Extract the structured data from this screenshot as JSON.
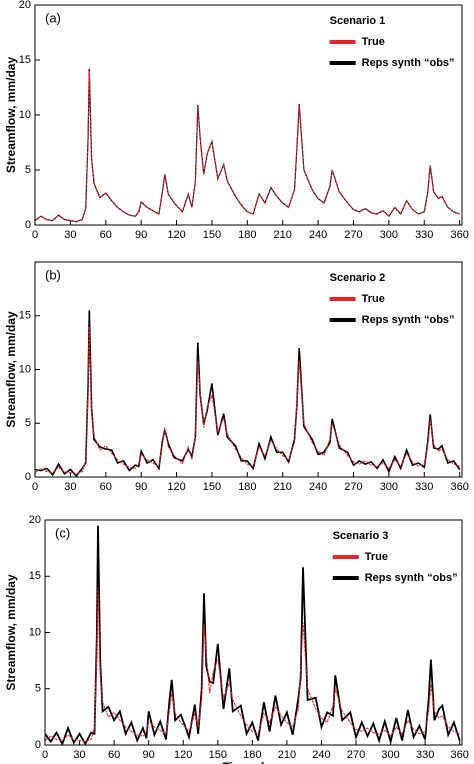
{
  "chart_data": [
    {
      "type": "line",
      "panel_label": "(a)",
      "title": "Scenario 1",
      "ylabel": "Streamflow, mm/day",
      "x": [
        0,
        5,
        10,
        15,
        20,
        25,
        30,
        35,
        40,
        43,
        45,
        46,
        48,
        50,
        55,
        60,
        65,
        70,
        75,
        80,
        85,
        88,
        90,
        95,
        100,
        105,
        108,
        110,
        113,
        118,
        125,
        130,
        133,
        136,
        138,
        140,
        143,
        146,
        150,
        155,
        160,
        163,
        170,
        175,
        180,
        185,
        190,
        195,
        200,
        205,
        210,
        215,
        220,
        222,
        224,
        228,
        235,
        240,
        245,
        250,
        252,
        258,
        265,
        270,
        275,
        280,
        285,
        290,
        295,
        300,
        305,
        310,
        315,
        320,
        325,
        330,
        333,
        335,
        338,
        342,
        345,
        350,
        355,
        360
      ],
      "series": [
        {
          "name": "Reps synth “obs”",
          "color": "#000000",
          "values": [
            0.4,
            0.8,
            0.5,
            0.4,
            0.9,
            0.5,
            0.4,
            0.3,
            0.5,
            1.5,
            8,
            14.2,
            6,
            3.8,
            2.5,
            2.9,
            2.2,
            1.6,
            1.2,
            0.9,
            0.8,
            1.2,
            2.1,
            1.6,
            1.3,
            1.0,
            3,
            4.6,
            2.8,
            2.0,
            1.2,
            2.8,
            1.6,
            4,
            10.9,
            8,
            4.6,
            6.5,
            7.6,
            4.2,
            5.5,
            4.0,
            2.6,
            1.8,
            1.2,
            1.0,
            2.8,
            2.0,
            3.4,
            2.6,
            2.0,
            1.6,
            3.2,
            7,
            11.0,
            5,
            3.2,
            2.4,
            2.0,
            3.5,
            5.0,
            3.0,
            2.0,
            1.4,
            1.2,
            1.5,
            1.1,
            1.0,
            1.3,
            0.8,
            1.6,
            1.0,
            2.2,
            1.4,
            1.0,
            1.2,
            3,
            5.4,
            3,
            2.4,
            2.6,
            1.6,
            1.2,
            1.0
          ]
        },
        {
          "name": "True",
          "color": "#e0262b",
          "values": [
            0.4,
            0.8,
            0.5,
            0.4,
            0.9,
            0.5,
            0.4,
            0.3,
            0.5,
            1.5,
            8,
            14,
            6,
            3.8,
            2.5,
            2.9,
            2.2,
            1.6,
            1.2,
            0.9,
            0.8,
            1.2,
            2.1,
            1.6,
            1.3,
            1.0,
            3,
            4.6,
            2.8,
            2.0,
            1.2,
            2.8,
            1.6,
            4,
            10.8,
            8,
            4.6,
            6.5,
            7.6,
            4.2,
            5.5,
            4.0,
            2.6,
            1.8,
            1.2,
            1.0,
            2.8,
            2.0,
            3.4,
            2.6,
            2.0,
            1.6,
            3.2,
            7,
            10.9,
            5,
            3.2,
            2.4,
            2.0,
            3.5,
            5.0,
            3.0,
            2.0,
            1.4,
            1.2,
            1.5,
            1.1,
            1.0,
            1.3,
            0.8,
            1.6,
            1.0,
            2.2,
            1.4,
            1.0,
            1.2,
            3,
            5.4,
            3,
            2.4,
            2.6,
            1.6,
            1.2,
            1.0
          ]
        }
      ],
      "xlim": [
        0,
        362
      ],
      "xticks": [
        0,
        30,
        60,
        90,
        120,
        150,
        180,
        210,
        240,
        270,
        300,
        330,
        360
      ],
      "ylim": [
        0,
        20
      ],
      "yticks": [
        0,
        5,
        10,
        15,
        20
      ],
      "legend": "upper right"
    },
    {
      "type": "line",
      "panel_label": "(b)",
      "title": "Scenario 2",
      "ylabel": "Streamflow, mm/day",
      "x": [
        0,
        5,
        10,
        15,
        20,
        25,
        30,
        35,
        40,
        43,
        45,
        46,
        48,
        50,
        55,
        60,
        65,
        70,
        75,
        80,
        85,
        88,
        90,
        95,
        100,
        105,
        108,
        110,
        113,
        118,
        125,
        130,
        133,
        136,
        138,
        140,
        143,
        146,
        150,
        155,
        160,
        163,
        170,
        175,
        180,
        185,
        190,
        195,
        200,
        205,
        210,
        215,
        220,
        222,
        224,
        228,
        235,
        240,
        245,
        250,
        252,
        258,
        265,
        270,
        275,
        280,
        285,
        290,
        295,
        300,
        305,
        310,
        315,
        320,
        325,
        330,
        333,
        335,
        338,
        342,
        345,
        350,
        355,
        360
      ],
      "series": [
        {
          "name": "Reps synth “obs”",
          "color": "#000000",
          "values": [
            0.7,
            0.6,
            0.8,
            0.2,
            1.2,
            0.3,
            0.7,
            0.1,
            0.8,
            1.3,
            8.5,
            15.5,
            6.4,
            3.5,
            2.8,
            2.6,
            2.5,
            1.3,
            1.5,
            0.6,
            1.1,
            1.0,
            2.4,
            1.3,
            1.6,
            0.8,
            3.3,
            4.4,
            3.1,
            1.8,
            1.5,
            2.6,
            1.9,
            3.8,
            12.5,
            7.7,
            4.9,
            6.2,
            8.7,
            3.9,
            5.9,
            3.7,
            2.9,
            1.5,
            1.5,
            0.8,
            3.1,
            1.7,
            3.7,
            2.3,
            2.3,
            1.4,
            3.5,
            6.7,
            12,
            4.7,
            3.5,
            2.1,
            2.3,
            3.2,
            5.4,
            2.7,
            2.3,
            1.1,
            1.5,
            1.2,
            1.4,
            0.8,
            1.6,
            0.5,
            1.9,
            0.8,
            2.5,
            1.1,
            1.3,
            0.9,
            3.3,
            5.8,
            2.7,
            2.6,
            2.9,
            1.3,
            1.5,
            0.7
          ]
        },
        {
          "name": "True",
          "color": "#e0262b",
          "values": [
            0.4,
            0.8,
            0.5,
            0.4,
            0.9,
            0.5,
            0.4,
            0.3,
            0.5,
            1.5,
            8,
            14,
            6,
            3.8,
            2.5,
            2.9,
            2.2,
            1.6,
            1.2,
            0.9,
            0.8,
            1.2,
            2.1,
            1.6,
            1.3,
            1.0,
            3,
            4.6,
            2.8,
            2.0,
            1.2,
            2.8,
            1.6,
            4,
            10.8,
            8,
            4.6,
            6.5,
            7.6,
            4.2,
            5.5,
            4.0,
            2.6,
            1.8,
            1.2,
            1.0,
            2.8,
            2.0,
            3.4,
            2.6,
            2.0,
            1.6,
            3.2,
            7,
            10.9,
            5,
            3.2,
            2.4,
            2.0,
            3.5,
            5.0,
            3.0,
            2.0,
            1.4,
            1.2,
            1.5,
            1.1,
            1.0,
            1.3,
            0.8,
            1.6,
            1.0,
            2.2,
            1.4,
            1.0,
            1.2,
            3,
            5.4,
            3,
            2.4,
            2.6,
            1.6,
            1.2,
            1.0
          ]
        }
      ],
      "xlim": [
        0,
        362
      ],
      "xticks": [
        0,
        30,
        60,
        90,
        120,
        150,
        180,
        210,
        240,
        270,
        300,
        330,
        360
      ],
      "ylim": [
        0,
        20
      ],
      "yticks": [
        0,
        5,
        10,
        15
      ],
      "legend": "upper right"
    },
    {
      "type": "line",
      "panel_label": "(c)",
      "title": "Scenario 3",
      "ylabel": "Streamflow, mm/day",
      "xlabel": "Time, days",
      "x": [
        0,
        5,
        10,
        15,
        20,
        25,
        30,
        35,
        40,
        43,
        45,
        46,
        48,
        50,
        55,
        60,
        65,
        70,
        75,
        80,
        85,
        88,
        90,
        95,
        100,
        105,
        108,
        110,
        113,
        118,
        125,
        130,
        133,
        136,
        138,
        140,
        143,
        146,
        150,
        155,
        160,
        163,
        170,
        175,
        180,
        185,
        190,
        195,
        200,
        205,
        210,
        215,
        220,
        222,
        224,
        228,
        235,
        240,
        245,
        250,
        252,
        258,
        265,
        270,
        275,
        280,
        285,
        290,
        295,
        300,
        305,
        310,
        315,
        320,
        325,
        330,
        333,
        335,
        338,
        342,
        345,
        350,
        355,
        360
      ],
      "series": [
        {
          "name": "Reps synth “obs”",
          "color": "#000000",
          "values": [
            1.0,
            0.3,
            1.1,
            0.1,
            1.5,
            0.2,
            1.0,
            0.1,
            1.1,
            1.0,
            9.5,
            19.5,
            7.2,
            3.0,
            3.4,
            2.2,
            3.0,
            1.0,
            2.0,
            0.4,
            1.5,
            0.6,
            3.0,
            0.9,
            2.1,
            0.5,
            3.9,
            5.8,
            2.2,
            2.7,
            0.7,
            3.6,
            1.0,
            5.0,
            13.5,
            7.0,
            5.6,
            5.5,
            9.0,
            3.2,
            6.8,
            3.0,
            3.5,
            1.0,
            2.0,
            0.4,
            3.8,
            1.2,
            4.4,
            1.8,
            2.9,
            0.9,
            4.2,
            6.0,
            15.8,
            4.0,
            4.2,
            1.6,
            2.9,
            2.6,
            6.2,
            2.2,
            2.9,
            0.7,
            2.0,
            0.8,
            1.9,
            0.4,
            2.1,
            0.3,
            2.4,
            0.4,
            3.1,
            0.7,
            1.7,
            0.5,
            4.0,
            7.6,
            2.2,
            3.2,
            3.5,
            0.9,
            2.0,
            0.4
          ]
        },
        {
          "name": "True",
          "color": "#e0262b",
          "values": [
            0.4,
            0.8,
            0.5,
            0.4,
            0.9,
            0.5,
            0.4,
            0.3,
            0.5,
            1.5,
            8,
            14,
            6,
            3.8,
            2.5,
            2.9,
            2.2,
            1.6,
            1.2,
            0.9,
            0.8,
            1.2,
            2.1,
            1.6,
            1.3,
            1.0,
            3,
            4.6,
            2.8,
            2.0,
            1.2,
            2.8,
            1.6,
            4,
            10.8,
            8,
            4.6,
            6.5,
            7.6,
            4.2,
            5.5,
            4.0,
            2.6,
            1.8,
            1.2,
            1.0,
            2.8,
            2.0,
            3.4,
            2.6,
            2.0,
            1.6,
            3.2,
            7,
            10.9,
            5,
            3.2,
            2.4,
            2.0,
            3.5,
            5.0,
            3.0,
            2.0,
            1.4,
            1.2,
            1.5,
            1.1,
            1.0,
            1.3,
            0.8,
            1.6,
            1.0,
            2.2,
            1.4,
            1.0,
            1.2,
            3,
            5.4,
            3,
            2.4,
            2.6,
            1.6,
            1.2,
            1.0
          ]
        }
      ],
      "xlim": [
        0,
        362
      ],
      "xticks": [
        0,
        30,
        60,
        90,
        120,
        150,
        180,
        210,
        240,
        270,
        300,
        330,
        360
      ],
      "ylim": [
        0,
        20
      ],
      "yticks": [
        0,
        5,
        10,
        15,
        20
      ],
      "legend": "upper right"
    }
  ]
}
